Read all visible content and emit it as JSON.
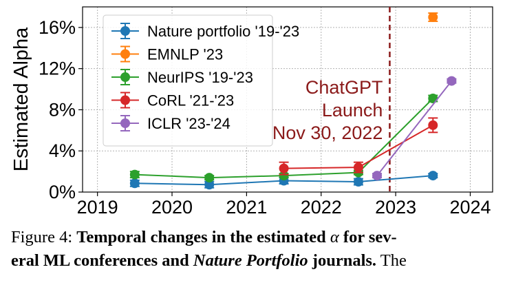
{
  "chart_data": {
    "type": "line",
    "ylabel": "Estimated Alpha",
    "xlabel": "",
    "xlim": [
      2018.8,
      2024.3
    ],
    "ylim": [
      0,
      0.18
    ],
    "x_ticks": [
      2019,
      2020,
      2021,
      2022,
      2023,
      2024
    ],
    "x_tick_labels": [
      "2019",
      "2020",
      "2021",
      "2022",
      "2023",
      "2024"
    ],
    "y_ticks": [
      0,
      0.04,
      0.08,
      0.12,
      0.16
    ],
    "y_tick_labels": [
      "0%",
      "4%",
      "8%",
      "12%",
      "16%"
    ],
    "grid": true,
    "legend_position": "top-left",
    "series": [
      {
        "name": "Nature portfolio '19-'23",
        "color": "#1f77b4",
        "points": [
          [
            2019.5,
            0.0085,
            0.003
          ],
          [
            2020.5,
            0.0072,
            0.003
          ],
          [
            2021.5,
            0.011,
            0.003
          ],
          [
            2022.5,
            0.01,
            0.003
          ],
          [
            2023.5,
            0.016,
            0.002
          ]
        ]
      },
      {
        "name": "EMNLP '23",
        "color": "#ff7f0e",
        "points": [
          [
            2023.5,
            0.17,
            0.004
          ]
        ]
      },
      {
        "name": "NeurIPS '19-'23",
        "color": "#2ca02c",
        "points": [
          [
            2019.5,
            0.017,
            0.003
          ],
          [
            2020.5,
            0.014,
            0.002
          ],
          [
            2021.5,
            0.016,
            0.002
          ],
          [
            2022.5,
            0.019,
            0.002
          ],
          [
            2023.5,
            0.091,
            0.003
          ]
        ]
      },
      {
        "name": "CoRL '21-'23",
        "color": "#d62728",
        "points": [
          [
            2021.5,
            0.023,
            0.006
          ],
          [
            2022.5,
            0.024,
            0.005
          ],
          [
            2023.5,
            0.065,
            0.007
          ]
        ]
      },
      {
        "name": "ICLR '23-'24",
        "color": "#9467bd",
        "points": [
          [
            2022.75,
            0.016,
            0.002
          ],
          [
            2023.75,
            0.108,
            0.002
          ]
        ]
      }
    ],
    "annotation": {
      "x": 2022.92,
      "color": "#8b1a1a",
      "lines": [
        "ChatGPT",
        "Launch",
        "Nov 30, 2022"
      ]
    }
  },
  "caption": {
    "prefix": "Figure 4: ",
    "bold1": "Temporal changes in the estimated ",
    "alpha": "α",
    "bold2": " for sev-",
    "bold3": "eral ML conferences and ",
    "italic": "Nature Portfolio",
    "bold4": " journals.",
    "trail": " The"
  }
}
